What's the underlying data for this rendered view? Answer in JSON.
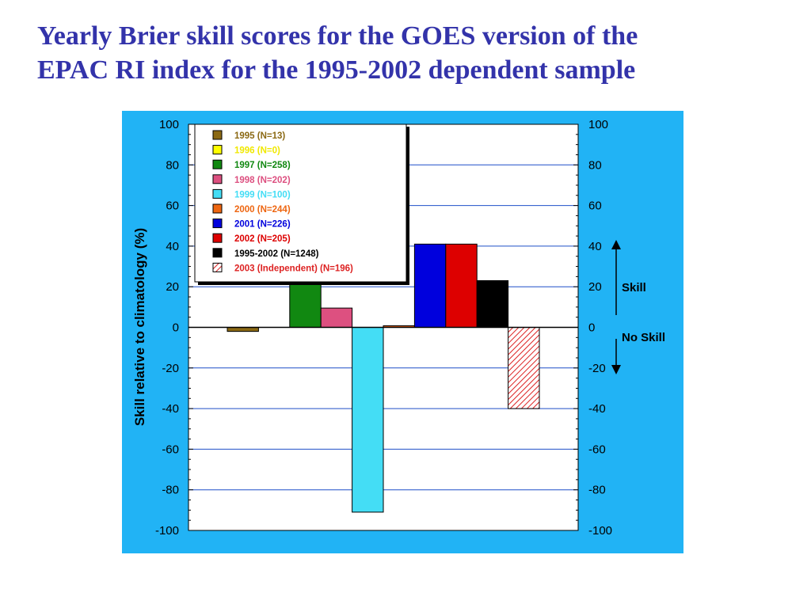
{
  "slide": {
    "title_line1": "Yearly Brier skill scores for the GOES version of the",
    "title_line2": "EPAC RI index for the 1995-2002 dependent sample"
  },
  "colors": {
    "panel_background": "#21b3f5",
    "plot_background": "#ffffff",
    "gridline": "#1f4fc8",
    "title": "#3333aa"
  },
  "chart_data": {
    "type": "bar",
    "ylabel": "Skill relative to climatology (%)",
    "ylim": [
      -100,
      100
    ],
    "yticks": [
      100,
      80,
      60,
      40,
      20,
      0,
      -20,
      -40,
      -60,
      -80,
      -100
    ],
    "grid": true,
    "legend_position": "top-left",
    "series": [
      {
        "name": "1995 (N=13)",
        "value": -2,
        "color": "#8b6914",
        "label_color": "#8b6914"
      },
      {
        "name": "1996 (N=0)",
        "value": 0,
        "color": "#ffff00",
        "label_color": "#f0e800"
      },
      {
        "name": "1997 (N=258)",
        "value": 22,
        "color": "#118811",
        "label_color": "#118811"
      },
      {
        "name": "1998 (N=202)",
        "value": 9.5,
        "color": "#dd5080",
        "label_color": "#dd5080"
      },
      {
        "name": "1999 (N=100)",
        "value": -91,
        "color": "#44ddf5",
        "label_color": "#44ddf5"
      },
      {
        "name": "2000 (N=244)",
        "value": 0.8,
        "color": "#ee6611",
        "label_color": "#ee6611"
      },
      {
        "name": "2001 (N=226)",
        "value": 41,
        "color": "#0000dd",
        "label_color": "#0000dd"
      },
      {
        "name": "2002 (N=205)",
        "value": 41,
        "color": "#dd0000",
        "label_color": "#dd0000"
      },
      {
        "name": "1995-2002 (N=1248)",
        "value": 23,
        "color": "#000000",
        "label_color": "#000000"
      },
      {
        "name": "2003 (Independent) (N=196)",
        "value": -40,
        "color": "#dd2222",
        "label_color": "#dd2222",
        "pattern": "hatched"
      }
    ],
    "annotations": {
      "skill": "Skill",
      "no_skill": "No Skill"
    }
  }
}
